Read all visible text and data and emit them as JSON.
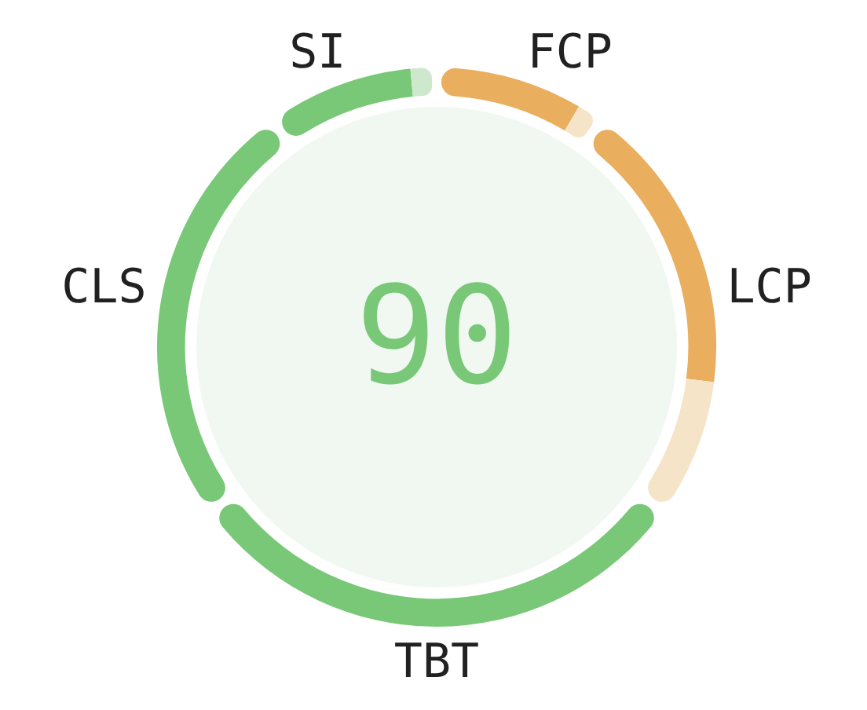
{
  "chart_data": {
    "type": "donut",
    "categories": [
      "FCP",
      null,
      "LCP",
      null,
      "TBT",
      "CLS",
      "SI",
      null
    ],
    "values": [
      8.5,
      1.5,
      17,
      8,
      30,
      25,
      8.5,
      1.5
    ],
    "colors": [
      "#e9ae5e",
      "#f6e4c8",
      "#e9ae5e",
      "#f6e4c8",
      "#78c878",
      "#78c878",
      "#78c878",
      "#cde8cd"
    ],
    "annotations": [
      "90"
    ]
  }
}
